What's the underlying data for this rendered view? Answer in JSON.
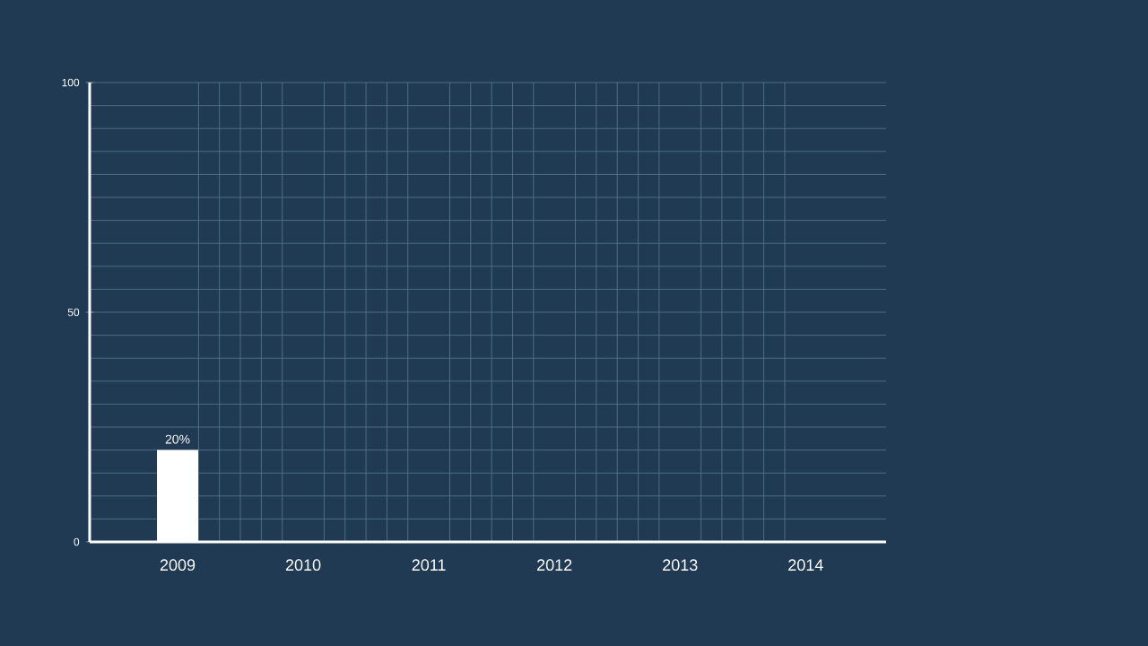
{
  "chart_data": {
    "type": "bar",
    "categories": [
      "2009",
      "2010",
      "2011",
      "2012",
      "2013",
      "2014"
    ],
    "values": [
      20,
      null,
      null,
      null,
      null,
      null
    ],
    "value_labels": [
      "20%",
      null,
      null,
      null,
      null,
      null
    ],
    "color": "#ffffff",
    "ylim": [
      0,
      100
    ],
    "yticks": [
      0,
      50,
      100
    ],
    "grid": true
  }
}
